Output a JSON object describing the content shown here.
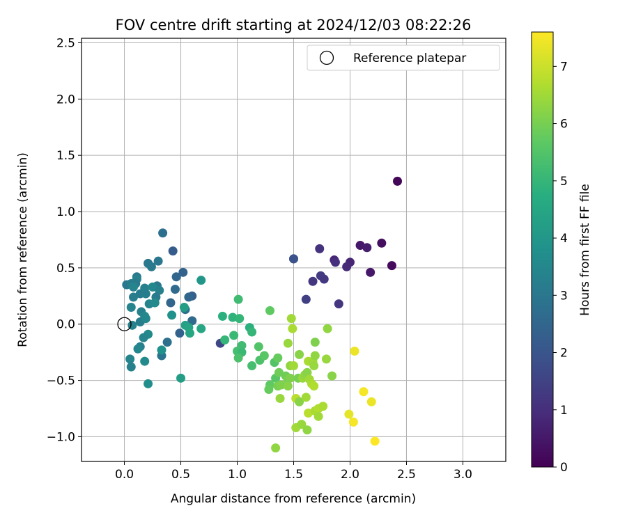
{
  "chart_data": {
    "type": "scatter",
    "title": "FOV centre drift starting at 2024/12/03 08:22:26",
    "xlabel": "Angular distance from reference (arcmin)",
    "ylabel": "Rotation from reference (arcmin)",
    "xlim": [
      -0.38,
      3.38
    ],
    "ylim": [
      -1.22,
      2.54
    ],
    "xticks": [
      "0.0",
      "0.5",
      "1.0",
      "1.5",
      "2.0",
      "2.5",
      "3.0"
    ],
    "yticks": [
      "−1.0",
      "−0.5",
      "0.0",
      "0.5",
      "1.0",
      "1.5",
      "2.0",
      "2.5"
    ],
    "xtick_values": [
      0,
      0.5,
      1.0,
      1.5,
      2.0,
      2.5,
      3.0
    ],
    "ytick_values": [
      -1.0,
      -0.5,
      0,
      0.5,
      1.0,
      1.5,
      2.0,
      2.5
    ],
    "grid": true,
    "legend_position": "top-right",
    "legend_label": "Reference platepar",
    "reference_point": {
      "x": 0.0,
      "y": 0.0
    },
    "colorbar": {
      "label": "Hours from first FF file",
      "min": 0,
      "max": 7.6,
      "ticks": [
        "0",
        "1",
        "2",
        "3",
        "4",
        "5",
        "6",
        "7"
      ],
      "tick_values": [
        0,
        1,
        2,
        3,
        4,
        5,
        6,
        7
      ],
      "colormap": "viridis"
    },
    "points": [
      {
        "x": 2.42,
        "y": 1.27,
        "h": 0.1
      },
      {
        "x": 2.28,
        "y": 0.72,
        "h": 0.3
      },
      {
        "x": 2.37,
        "y": 0.52,
        "h": 0.2
      },
      {
        "x": 2.09,
        "y": 0.7,
        "h": 0.5
      },
      {
        "x": 2.15,
        "y": 0.68,
        "h": 0.6
      },
      {
        "x": 2.18,
        "y": 0.46,
        "h": 0.5
      },
      {
        "x": 2.0,
        "y": 0.55,
        "h": 0.8
      },
      {
        "x": 1.97,
        "y": 0.51,
        "h": 0.9
      },
      {
        "x": 1.86,
        "y": 0.57,
        "h": 0.8
      },
      {
        "x": 1.87,
        "y": 0.55,
        "h": 1.0
      },
      {
        "x": 1.73,
        "y": 0.67,
        "h": 1.1
      },
      {
        "x": 1.74,
        "y": 0.43,
        "h": 1.3
      },
      {
        "x": 1.77,
        "y": 0.4,
        "h": 1.2
      },
      {
        "x": 1.67,
        "y": 0.38,
        "h": 1.2
      },
      {
        "x": 1.61,
        "y": 0.22,
        "h": 1.4
      },
      {
        "x": 1.9,
        "y": 0.18,
        "h": 1.2
      },
      {
        "x": 1.5,
        "y": 0.58,
        "h": 1.8
      },
      {
        "x": 1.5,
        "y": 0.58,
        "h": 1.9
      },
      {
        "x": 0.85,
        "y": -0.17,
        "h": 1.6
      },
      {
        "x": 0.43,
        "y": 0.65,
        "h": 2.2
      },
      {
        "x": 0.52,
        "y": 0.46,
        "h": 2.4
      },
      {
        "x": 0.46,
        "y": 0.42,
        "h": 2.5
      },
      {
        "x": 0.6,
        "y": 0.25,
        "h": 2.3
      },
      {
        "x": 0.57,
        "y": 0.24,
        "h": 2.5
      },
      {
        "x": 0.45,
        "y": 0.31,
        "h": 2.6
      },
      {
        "x": 0.41,
        "y": 0.19,
        "h": 2.5
      },
      {
        "x": 0.6,
        "y": 0.03,
        "h": 2.6
      },
      {
        "x": 0.49,
        "y": -0.08,
        "h": 2.4
      },
      {
        "x": 0.54,
        "y": 0.13,
        "h": 2.8
      },
      {
        "x": 0.34,
        "y": 0.81,
        "h": 2.8
      },
      {
        "x": 0.3,
        "y": 0.56,
        "h": 3.0
      },
      {
        "x": 0.21,
        "y": 0.54,
        "h": 3.0
      },
      {
        "x": 0.24,
        "y": 0.51,
        "h": 3.1
      },
      {
        "x": 0.29,
        "y": 0.34,
        "h": 3.0
      },
      {
        "x": 0.38,
        "y": -0.16,
        "h": 2.8
      },
      {
        "x": 0.33,
        "y": -0.28,
        "h": 2.9
      },
      {
        "x": 0.02,
        "y": 0.35,
        "h": 3.0
      },
      {
        "x": 0.06,
        "y": 0.36,
        "h": 3.2
      },
      {
        "x": 0.11,
        "y": 0.42,
        "h": 3.0
      },
      {
        "x": 0.11,
        "y": 0.4,
        "h": 3.3
      },
      {
        "x": 0.1,
        "y": 0.36,
        "h": 3.1
      },
      {
        "x": 0.08,
        "y": 0.33,
        "h": 3.4
      },
      {
        "x": 0.14,
        "y": 0.27,
        "h": 3.1
      },
      {
        "x": 0.18,
        "y": 0.32,
        "h": 3.3
      },
      {
        "x": 0.19,
        "y": 0.27,
        "h": 3.2
      },
      {
        "x": 0.25,
        "y": 0.33,
        "h": 3.5
      },
      {
        "x": 0.31,
        "y": 0.3,
        "h": 3.3
      },
      {
        "x": 0.28,
        "y": 0.24,
        "h": 3.1
      },
      {
        "x": 0.08,
        "y": 0.24,
        "h": 3.2
      },
      {
        "x": 0.22,
        "y": 0.18,
        "h": 3.4
      },
      {
        "x": 0.27,
        "y": 0.19,
        "h": 3.6
      },
      {
        "x": 0.06,
        "y": 0.15,
        "h": 3.4
      },
      {
        "x": 0.15,
        "y": 0.11,
        "h": 3.3
      },
      {
        "x": 0.18,
        "y": 0.07,
        "h": 3.5
      },
      {
        "x": 0.14,
        "y": 0.02,
        "h": 3.2
      },
      {
        "x": 0.19,
        "y": 0.05,
        "h": 3.5
      },
      {
        "x": 0.07,
        "y": -0.01,
        "h": 3.3
      },
      {
        "x": 0.21,
        "y": -0.09,
        "h": 3.6
      },
      {
        "x": 0.17,
        "y": -0.12,
        "h": 3.4
      },
      {
        "x": 0.14,
        "y": -0.2,
        "h": 3.3
      },
      {
        "x": 0.12,
        "y": -0.22,
        "h": 3.5
      },
      {
        "x": 0.05,
        "y": -0.31,
        "h": 3.4
      },
      {
        "x": 0.06,
        "y": -0.38,
        "h": 3.3
      },
      {
        "x": 0.18,
        "y": -0.33,
        "h": 3.6
      },
      {
        "x": 0.21,
        "y": -0.53,
        "h": 3.7
      },
      {
        "x": 0.33,
        "y": -0.23,
        "h": 3.8
      },
      {
        "x": 0.42,
        "y": 0.08,
        "h": 3.8
      },
      {
        "x": 0.68,
        "y": 0.39,
        "h": 4.0
      },
      {
        "x": 0.53,
        "y": 0.15,
        "h": 4.2
      },
      {
        "x": 0.5,
        "y": -0.48,
        "h": 4.2
      },
      {
        "x": 0.54,
        "y": -0.01,
        "h": 4.3
      },
      {
        "x": 0.57,
        "y": -0.03,
        "h": 4.4
      },
      {
        "x": 0.58,
        "y": -0.08,
        "h": 4.5
      },
      {
        "x": 0.68,
        "y": -0.04,
        "h": 4.5
      },
      {
        "x": 0.87,
        "y": 0.07,
        "h": 4.8
      },
      {
        "x": 0.96,
        "y": 0.06,
        "h": 4.9
      },
      {
        "x": 1.01,
        "y": 0.22,
        "h": 5.2
      },
      {
        "x": 1.02,
        "y": 0.05,
        "h": 5.0
      },
      {
        "x": 0.89,
        "y": -0.14,
        "h": 5.0
      },
      {
        "x": 0.97,
        "y": -0.1,
        "h": 5.1
      },
      {
        "x": 1.11,
        "y": -0.03,
        "h": 4.8
      },
      {
        "x": 1.13,
        "y": -0.07,
        "h": 5.0
      },
      {
        "x": 1.04,
        "y": -0.19,
        "h": 5.2
      },
      {
        "x": 1.0,
        "y": -0.24,
        "h": 5.3
      },
      {
        "x": 1.04,
        "y": -0.25,
        "h": 5.1
      },
      {
        "x": 1.01,
        "y": -0.3,
        "h": 5.4
      },
      {
        "x": 1.13,
        "y": -0.37,
        "h": 5.3
      },
      {
        "x": 1.19,
        "y": -0.2,
        "h": 5.5
      },
      {
        "x": 1.2,
        "y": -0.32,
        "h": 5.4
      },
      {
        "x": 1.24,
        "y": -0.28,
        "h": 5.6
      },
      {
        "x": 1.29,
        "y": 0.12,
        "h": 5.7
      },
      {
        "x": 1.33,
        "y": -0.34,
        "h": 5.5
      },
      {
        "x": 1.36,
        "y": -0.3,
        "h": 5.8
      },
      {
        "x": 1.34,
        "y": -0.48,
        "h": 5.6
      },
      {
        "x": 1.37,
        "y": -0.43,
        "h": 5.9
      },
      {
        "x": 1.29,
        "y": -0.54,
        "h": 5.7
      },
      {
        "x": 1.28,
        "y": -0.58,
        "h": 5.8
      },
      {
        "x": 1.36,
        "y": -0.55,
        "h": 6.0
      },
      {
        "x": 1.39,
        "y": -0.54,
        "h": 6.1
      },
      {
        "x": 1.43,
        "y": -0.46,
        "h": 5.9
      },
      {
        "x": 1.45,
        "y": -0.49,
        "h": 6.0
      },
      {
        "x": 1.45,
        "y": -0.55,
        "h": 6.2
      },
      {
        "x": 1.47,
        "y": -0.48,
        "h": 6.1
      },
      {
        "x": 1.47,
        "y": -0.37,
        "h": 6.3
      },
      {
        "x": 1.45,
        "y": -0.17,
        "h": 6.4
      },
      {
        "x": 1.48,
        "y": 0.05,
        "h": 6.5
      },
      {
        "x": 1.49,
        "y": -0.04,
        "h": 6.6
      },
      {
        "x": 1.5,
        "y": -0.37,
        "h": 6.5
      },
      {
        "x": 1.55,
        "y": -0.27,
        "h": 6.2
      },
      {
        "x": 1.54,
        "y": -0.48,
        "h": 6.0
      },
      {
        "x": 1.58,
        "y": -0.48,
        "h": 6.4
      },
      {
        "x": 1.6,
        "y": -0.45,
        "h": 6.3
      },
      {
        "x": 1.62,
        "y": -0.43,
        "h": 6.2
      },
      {
        "x": 1.63,
        "y": -0.33,
        "h": 6.6
      },
      {
        "x": 1.67,
        "y": -0.33,
        "h": 6.5
      },
      {
        "x": 1.68,
        "y": -0.37,
        "h": 6.4
      },
      {
        "x": 1.69,
        "y": -0.28,
        "h": 6.3
      },
      {
        "x": 1.64,
        "y": -0.49,
        "h": 6.5
      },
      {
        "x": 1.66,
        "y": -0.53,
        "h": 6.6
      },
      {
        "x": 1.68,
        "y": -0.55,
        "h": 6.7
      },
      {
        "x": 1.69,
        "y": -0.16,
        "h": 6.1
      },
      {
        "x": 1.8,
        "y": -0.04,
        "h": 6.3
      },
      {
        "x": 1.79,
        "y": -0.31,
        "h": 6.4
      },
      {
        "x": 1.84,
        "y": -0.46,
        "h": 6.2
      },
      {
        "x": 1.52,
        "y": -0.66,
        "h": 6.8
      },
      {
        "x": 1.55,
        "y": -0.69,
        "h": 6.2
      },
      {
        "x": 1.61,
        "y": -0.65,
        "h": 6.5
      },
      {
        "x": 1.38,
        "y": -0.66,
        "h": 6.4
      },
      {
        "x": 1.63,
        "y": -0.79,
        "h": 6.8
      },
      {
        "x": 1.69,
        "y": -0.77,
        "h": 6.6
      },
      {
        "x": 1.72,
        "y": -0.75,
        "h": 6.7
      },
      {
        "x": 1.76,
        "y": -0.73,
        "h": 6.6
      },
      {
        "x": 1.72,
        "y": -0.82,
        "h": 6.5
      },
      {
        "x": 1.52,
        "y": -0.92,
        "h": 6.5
      },
      {
        "x": 1.57,
        "y": -0.89,
        "h": 6.4
      },
      {
        "x": 1.62,
        "y": -0.94,
        "h": 6.3
      },
      {
        "x": 1.34,
        "y": -1.1,
        "h": 6.3
      },
      {
        "x": 2.04,
        "y": -0.24,
        "h": 7.4
      },
      {
        "x": 2.12,
        "y": -0.6,
        "h": 7.5
      },
      {
        "x": 2.19,
        "y": -0.69,
        "h": 7.4
      },
      {
        "x": 1.99,
        "y": -0.8,
        "h": 7.3
      },
      {
        "x": 2.03,
        "y": -0.87,
        "h": 7.5
      },
      {
        "x": 2.22,
        "y": -1.04,
        "h": 7.6
      }
    ]
  }
}
